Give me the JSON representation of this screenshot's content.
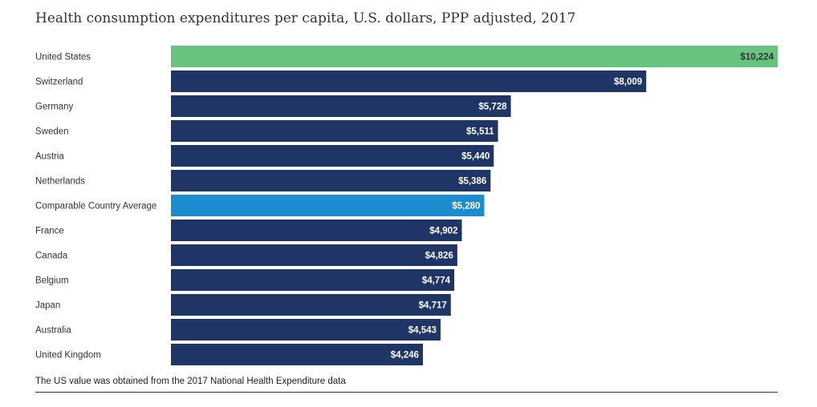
{
  "chart_data": {
    "type": "bar",
    "orientation": "horizontal",
    "title": "Health consumption expenditures per capita, U.S. dollars, PPP adjusted, 2017",
    "categories": [
      "United States",
      "Switzerland",
      "Germany",
      "Sweden",
      "Austria",
      "Netherlands",
      "Comparable Country Average",
      "France",
      "Canada",
      "Belgium",
      "Japan",
      "Australia",
      "United Kingdom"
    ],
    "values": [
      10224,
      8009,
      5728,
      5511,
      5440,
      5386,
      5280,
      4902,
      4826,
      4774,
      4717,
      4543,
      4246
    ],
    "value_labels": [
      "$10,224",
      "$8,009",
      "$5,728",
      "$5,511",
      "$5,440",
      "$5,386",
      "$5,280",
      "$4,902",
      "$4,826",
      "$4,774",
      "$4,717",
      "$4,543",
      "$4,246"
    ],
    "xlim": [
      0,
      10224
    ],
    "grid": false,
    "note": "The US value was obtained from the 2017 National Health Expenditure data",
    "colors": {
      "default": "#1f3566",
      "United States": "#66c47f",
      "Comparable Country Average": "#1a8ccf",
      "label_on_dark": "#ffffff",
      "label_on_light": "#333333"
    }
  }
}
